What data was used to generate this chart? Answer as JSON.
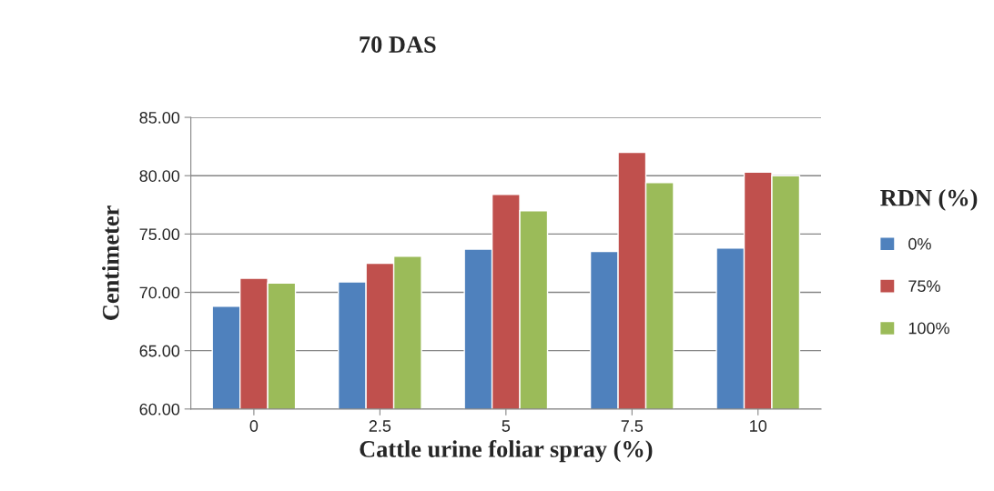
{
  "chart_data": {
    "type": "bar",
    "title": "70 DAS",
    "xlabel": "Cattle urine foliar spray (%)",
    "ylabel": "Centimeter",
    "legend_title": "RDN (%)",
    "categories": [
      "0",
      "2.5",
      "5",
      "7.5",
      "10"
    ],
    "series": [
      {
        "name": "0%",
        "color": "#4f81bd",
        "values": [
          68.8,
          70.9,
          73.7,
          73.5,
          73.8
        ]
      },
      {
        "name": "75%",
        "color": "#c0504d",
        "values": [
          71.2,
          72.5,
          78.4,
          82.0,
          80.3
        ]
      },
      {
        "name": "100%",
        "color": "#9bbb59",
        "values": [
          70.8,
          73.1,
          77.0,
          79.4,
          80.0
        ]
      }
    ],
    "ylim": [
      60,
      85
    ],
    "yticks": [
      {
        "value": 60,
        "label": "60.00"
      },
      {
        "value": 65,
        "label": "65.00"
      },
      {
        "value": 70,
        "label": "70.00"
      },
      {
        "value": 75,
        "label": "75.00"
      },
      {
        "value": 80,
        "label": "80.00"
      },
      {
        "value": 85,
        "label": "85.00"
      }
    ],
    "grid": "y",
    "legend": "right"
  }
}
